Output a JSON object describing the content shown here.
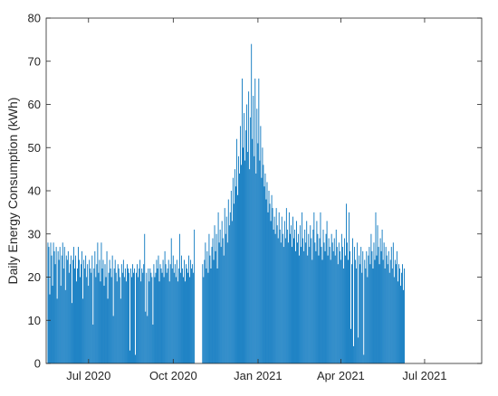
{
  "chart_data": {
    "type": "bar",
    "xlabel": "",
    "ylabel": "Daily Energy Consumption (kWh)",
    "ylim": [
      0,
      80
    ],
    "yticks": [
      0,
      10,
      20,
      30,
      40,
      50,
      60,
      70,
      80
    ],
    "xlim": [
      "2020-05-16",
      "2021-09-01"
    ],
    "xticks": [
      {
        "date": "2020-07-01",
        "label": "Jul 2020"
      },
      {
        "date": "2020-10-01",
        "label": "Oct 2020"
      },
      {
        "date": "2021-01-01",
        "label": "Jan 2021"
      },
      {
        "date": "2021-04-01",
        "label": "Apr 2021"
      },
      {
        "date": "2021-07-01",
        "label": "Jul 2021"
      }
    ],
    "grid": false,
    "box": true,
    "bar_color": "#0072BD",
    "series": [
      {
        "start_date": "2020-05-17",
        "values": [
          0,
          28,
          27,
          16,
          28,
          25,
          18,
          28,
          26,
          23,
          27,
          15,
          26,
          24,
          27,
          18,
          25,
          28,
          22,
          27,
          17,
          25,
          24,
          26,
          21,
          23,
          25,
          14,
          24,
          27,
          22,
          25,
          19,
          22,
          27,
          24,
          20,
          23,
          26,
          15,
          24,
          22,
          25,
          20,
          23,
          18,
          24,
          22,
          21,
          25,
          9,
          22,
          26,
          20,
          23,
          28,
          21,
          24,
          19,
          28,
          22,
          24,
          18,
          23,
          20,
          26,
          15,
          21,
          24,
          22,
          20,
          25,
          11,
          22,
          24,
          21,
          19,
          23,
          22,
          20,
          15,
          23,
          21,
          24,
          20,
          22,
          19,
          23,
          22,
          21,
          3,
          22,
          20,
          23,
          21,
          22,
          2,
          21,
          23,
          20,
          22,
          24,
          19,
          22,
          21,
          23,
          30,
          12,
          21,
          11,
          22,
          19,
          22,
          21,
          20,
          9,
          23,
          20,
          21,
          24,
          22,
          25,
          19,
          23,
          22,
          21,
          24,
          20,
          26,
          23,
          21,
          22,
          24,
          19,
          23,
          29,
          22,
          25,
          21,
          23,
          20,
          24,
          19,
          22,
          30,
          21,
          25,
          22,
          20,
          24,
          19,
          23,
          22,
          21,
          25,
          20,
          24,
          22,
          23,
          21,
          31,
          0,
          0,
          0,
          0,
          0,
          0,
          0,
          0,
          23,
          20,
          24,
          28,
          22,
          26,
          21,
          30,
          25,
          22,
          27,
          29,
          24,
          32,
          26,
          30,
          22,
          35,
          28,
          31,
          27,
          33,
          29,
          25,
          36,
          30,
          34,
          28,
          38,
          32,
          35,
          40,
          33,
          43,
          37,
          45,
          41,
          52,
          39,
          48,
          44,
          55,
          46,
          66,
          50,
          58,
          47,
          54,
          60,
          49,
          63,
          45,
          57,
          74,
          52,
          62,
          48,
          66,
          44,
          59,
          51,
          66,
          47,
          55,
          43,
          50,
          46,
          41,
          44,
          38,
          42,
          35,
          40,
          37,
          33,
          39,
          36,
          31,
          34,
          30,
          36,
          32,
          29,
          35,
          31,
          28,
          34,
          30,
          27,
          33,
          29,
          36,
          31,
          28,
          35,
          30,
          32,
          27,
          34,
          29,
          31,
          26,
          33,
          28,
          30,
          25,
          32,
          27,
          35,
          29,
          26,
          31,
          28,
          33,
          25,
          30,
          27,
          32,
          29,
          24,
          31,
          35,
          28,
          26,
          33,
          30,
          25,
          29,
          35,
          27,
          24,
          31,
          28,
          26,
          30,
          33,
          25,
          29,
          27,
          24,
          30,
          28,
          26,
          29,
          25,
          31,
          27,
          23,
          28,
          26,
          24,
          30,
          27,
          22,
          29,
          25,
          37,
          28,
          24,
          35,
          26,
          8,
          23,
          29,
          4,
          27,
          24,
          22,
          28,
          6,
          25,
          23,
          27,
          21,
          26,
          2,
          24,
          22,
          26,
          20,
          25,
          27,
          23,
          30,
          26,
          22,
          28,
          24,
          35,
          25,
          32,
          27,
          23,
          29,
          26,
          31,
          24,
          28,
          22,
          27,
          25,
          23,
          26,
          21,
          24,
          27,
          22,
          28,
          20,
          24,
          23,
          26,
          19,
          23,
          22,
          18,
          21,
          23,
          17,
          22
        ]
      }
    ]
  }
}
